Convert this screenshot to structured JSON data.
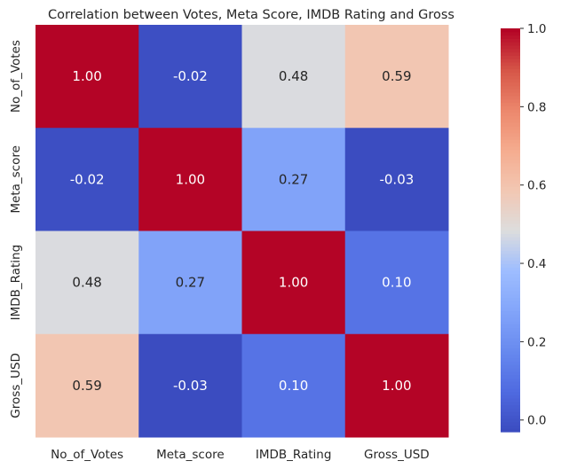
{
  "chart_data": {
    "type": "heatmap",
    "title": "Correlation between Votes, Meta Score, IMDB Rating and Gross",
    "x_labels": [
      "No_of_Votes",
      "Meta_score",
      "IMDB_Rating",
      "Gross_USD"
    ],
    "y_labels": [
      "No_of_Votes",
      "Meta_score",
      "IMDB_Rating",
      "Gross_USD"
    ],
    "values": [
      [
        1.0,
        -0.02,
        0.48,
        0.59
      ],
      [
        -0.02,
        1.0,
        0.27,
        -0.03
      ],
      [
        0.48,
        0.27,
        1.0,
        0.1
      ],
      [
        0.59,
        -0.03,
        0.1,
        1.0
      ]
    ],
    "annotations": [
      [
        "1.00",
        "-0.02",
        "0.48",
        "0.59"
      ],
      [
        "-0.02",
        "1.00",
        "0.27",
        "-0.03"
      ],
      [
        "0.48",
        "0.27",
        "1.00",
        "0.10"
      ],
      [
        "0.59",
        "-0.03",
        "0.10",
        "1.00"
      ]
    ],
    "colormap": "coolwarm",
    "vmin": -0.03,
    "vmax": 1.0,
    "colorbar_ticks": [
      0.0,
      0.2,
      0.4,
      0.6,
      0.8,
      1.0
    ],
    "colorbar_tick_labels": [
      "0.0",
      "0.2",
      "0.4",
      "0.6",
      "0.8",
      "1.0"
    ]
  }
}
